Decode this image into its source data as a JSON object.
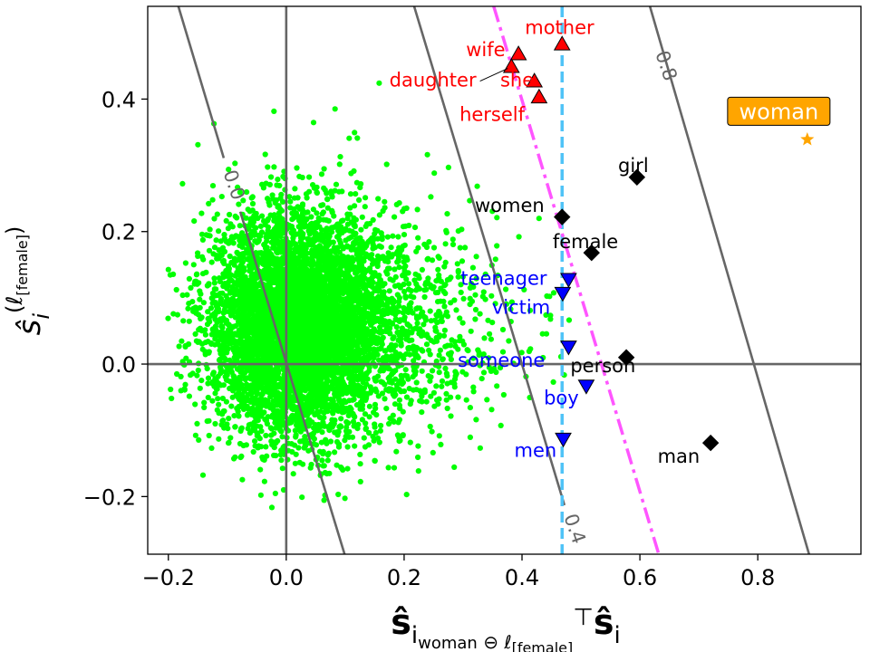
{
  "colors": {
    "cloud": "#00ff00",
    "contour": "#666666",
    "red_group": "#ff0000",
    "blue_group": "#0000ff",
    "black_group": "#000000",
    "cyan_line": "#4fc3f7",
    "magenta_line": "#ff55ff",
    "star": "#ffa500",
    "callout_bg": "#ffa500"
  },
  "chart_data": {
    "type": "scatter",
    "xlabel_main": "ŝ",
    "xlabel_sub": "i",
    "xlabel_subsub": "woman",
    "xlabel_sub2": " ⊖ ℓ",
    "xlabel_sub3": "[female]",
    "xlabel_tail": "⊤",
    "xlabel_main2": "ŝ",
    "xlabel_sub4": "i",
    "ylabel_main": "ŝ",
    "ylabel_sub": "i",
    "ylabel_sup": "(ℓ",
    "ylabel_supsub": "[female]",
    "ylabel_supend": ")",
    "xlim": [
      -0.235,
      0.975
    ],
    "ylim": [
      -0.287,
      0.54
    ],
    "xticks": [
      {
        "v": -0.2,
        "label": "−0.2"
      },
      {
        "v": 0.0,
        "label": "0.0"
      },
      {
        "v": 0.2,
        "label": "0.2"
      },
      {
        "v": 0.4,
        "label": "0.4"
      },
      {
        "v": 0.6,
        "label": "0.6"
      },
      {
        "v": 0.8,
        "label": "0.8"
      }
    ],
    "yticks": [
      {
        "v": -0.2,
        "label": "−0.2"
      },
      {
        "v": 0.0,
        "label": "0.0"
      },
      {
        "v": 0.2,
        "label": "0.2"
      },
      {
        "v": 0.4,
        "label": "0.4"
      }
    ],
    "grid": false,
    "reference_lines": {
      "x0": 0.0,
      "y0": 0.0,
      "vline_dashed": 0.468
    },
    "magenta_dashdot": {
      "x1": 0.352,
      "y1": 0.54,
      "x2": 0.632,
      "y2": -0.287
    },
    "contours": [
      {
        "label": "0.0",
        "p1": [
          -0.183,
          0.54
        ],
        "p2": [
          -0.106,
          0.311
        ],
        "p3": [
          -0.078,
          0.23
        ],
        "p4": [
          0.099,
          -0.287
        ],
        "label_at": [
          -0.09,
          0.27
        ],
        "angle": 71
      },
      {
        "label": "0.4",
        "p1": [
          0.217,
          0.54
        ],
        "p2": [
          0.472,
          -0.213
        ],
        "label_at": [
          0.488,
          -0.249
        ],
        "angle": 71
      },
      {
        "label": "0.8",
        "p1": [
          0.617,
          0.54
        ],
        "p2": [
          0.887,
          -0.287
        ],
        "label_at": [
          0.643,
          0.45
        ],
        "angle": 71
      }
    ],
    "cloud": {
      "center": [
        0.02,
        0.06
      ],
      "x_extent": [
        -0.215,
        0.49
      ],
      "y_extent": [
        -0.265,
        0.49
      ],
      "density": "very-dense"
    },
    "groups": [
      {
        "marker": "triangle-up",
        "color": "#ff0000",
        "points": [
          {
            "label": "mother",
            "x": 0.468,
            "y": 0.483,
            "lx": 0.405,
            "ly": 0.498
          },
          {
            "label": "wife",
            "x": 0.394,
            "y": 0.468,
            "lx": 0.305,
            "ly": 0.465
          },
          {
            "label": "daughter",
            "x": 0.382,
            "y": 0.449,
            "lx": 0.175,
            "ly": 0.419,
            "leader": true
          },
          {
            "label": "she",
            "x": 0.421,
            "y": 0.427,
            "lx": 0.363,
            "ly": 0.419
          },
          {
            "label": "herself",
            "x": 0.429,
            "y": 0.403,
            "lx": 0.294,
            "ly": 0.367
          }
        ]
      },
      {
        "marker": "triangle-down",
        "color": "#0000ff",
        "points": [
          {
            "label": "teenager",
            "x": 0.479,
            "y": 0.128,
            "lx": 0.296,
            "ly": 0.12
          },
          {
            "label": "victim",
            "x": 0.469,
            "y": 0.107,
            "lx": 0.349,
            "ly": 0.076
          },
          {
            "label": "someone",
            "x": 0.479,
            "y": 0.026,
            "lx": 0.291,
            "ly": -0.004
          },
          {
            "label": "boy",
            "x": 0.509,
            "y": -0.033,
            "lx": 0.437,
            "ly": -0.061
          },
          {
            "label": "men",
            "x": 0.47,
            "y": -0.113,
            "lx": 0.387,
            "ly": -0.14
          }
        ]
      },
      {
        "marker": "diamond",
        "color": "#000000",
        "points": [
          {
            "label": "girl",
            "x": 0.595,
            "y": 0.282,
            "lx": 0.563,
            "ly": 0.29
          },
          {
            "label": "women",
            "x": 0.468,
            "y": 0.222,
            "lx": 0.32,
            "ly": 0.23
          },
          {
            "label": "female",
            "x": 0.518,
            "y": 0.168,
            "lx": 0.452,
            "ly": 0.175
          },
          {
            "label": "person",
            "x": 0.577,
            "y": 0.01,
            "lx": 0.482,
            "ly": -0.012
          },
          {
            "label": "man",
            "x": 0.72,
            "y": -0.119,
            "lx": 0.63,
            "ly": -0.149
          }
        ]
      }
    ],
    "target": {
      "label": "woman",
      "marker": "star",
      "x": 0.884,
      "y": 0.339,
      "lx": 0.758,
      "ly": 0.37
    }
  }
}
